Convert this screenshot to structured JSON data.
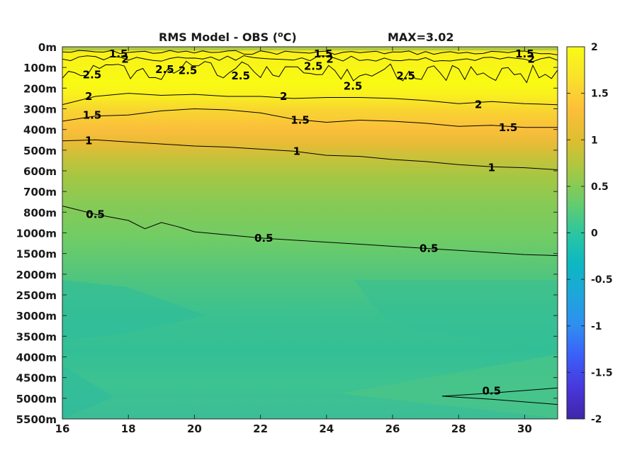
{
  "chart_data": {
    "type": "heatmap",
    "title": "RMS Model - OBS (",
    "title_unit": "o",
    "title_unit_tail": "C)",
    "max_label": "MAX=3.02",
    "x": {
      "ticks": [
        16,
        18,
        20,
        22,
        24,
        26,
        28,
        30
      ],
      "range": [
        16,
        31
      ]
    },
    "y": {
      "depth_labels": [
        "0m",
        "100m",
        "200m",
        "300m",
        "400m",
        "500m",
        "600m",
        "700m",
        "800m",
        "1000m",
        "1500m",
        "2000m",
        "2500m",
        "3000m",
        "3500m",
        "4000m",
        "4500m",
        "5000m",
        "5500m"
      ],
      "reversed": true
    },
    "colorbar": {
      "ticks": [
        "2",
        "1.5",
        "1",
        "0.5",
        "0",
        "-0.5",
        "-1",
        "-1.5",
        "-2"
      ],
      "range": [
        -2,
        2
      ],
      "colormap": "parula",
      "colors": [
        "#3e26a8",
        "#4836d9",
        "#3b5ff9",
        "#2f8ef0",
        "#1fa5dc",
        "#0db8c0",
        "#2cc6a0",
        "#66cc6c",
        "#a7c842",
        "#dfbe30",
        "#fcbe3a",
        "#f9e32b",
        "#f9fb15"
      ]
    },
    "value_index_to_depth": [
      0,
      100,
      200,
      300,
      400,
      500,
      600,
      700,
      800,
      1000,
      1500,
      2000,
      2500,
      3000,
      3500,
      4000,
      4500,
      5000,
      5500
    ],
    "rms_profile": [
      {
        "depth": "0m",
        "value": 1.3
      },
      {
        "depth": "100m",
        "value": 2.3
      },
      {
        "depth": "200m",
        "value": 2.1
      },
      {
        "depth": "300m",
        "value": 1.7
      },
      {
        "depth": "400m",
        "value": 1.3
      },
      {
        "depth": "500m",
        "value": 1.0
      },
      {
        "depth": "600m",
        "value": 0.85
      },
      {
        "depth": "700m",
        "value": 0.72
      },
      {
        "depth": "800m",
        "value": 0.6
      },
      {
        "depth": "1000m",
        "value": 0.5
      },
      {
        "depth": "1500m",
        "value": 0.42
      },
      {
        "depth": "2000m",
        "value": 0.36
      },
      {
        "depth": "2500m",
        "value": 0.32
      },
      {
        "depth": "3000m",
        "value": 0.3
      },
      {
        "depth": "3500m",
        "value": 0.32
      },
      {
        "depth": "4000m",
        "value": 0.35
      },
      {
        "depth": "4500m",
        "value": 0.38
      },
      {
        "depth": "5000m",
        "value": 0.4
      },
      {
        "depth": "5500m",
        "value": 0.36
      }
    ],
    "contour_levels": [
      {
        "level": 2.5,
        "label": "2.5"
      },
      {
        "level": 2,
        "label": "2"
      },
      {
        "level": 1.5,
        "label": "1.5"
      },
      {
        "level": 1,
        "label": "1"
      },
      {
        "level": 0.5,
        "label": "0.5"
      }
    ],
    "contour_labels": [
      {
        "text": "1.5",
        "x": 17.7,
        "depth": 0.35
      },
      {
        "text": "2",
        "x": 17.9,
        "depth": 0.6
      },
      {
        "text": "2.5",
        "x": 16.9,
        "depth": 1.35
      },
      {
        "text": "2.5",
        "x": 19.1,
        "depth": 1.1
      },
      {
        "text": "2.5",
        "x": 19.8,
        "depth": 1.15
      },
      {
        "text": "2.5",
        "x": 21.4,
        "depth": 1.4
      },
      {
        "text": "1.5",
        "x": 23.9,
        "depth": 0.35
      },
      {
        "text": "2",
        "x": 24.1,
        "depth": 0.6
      },
      {
        "text": "2.5",
        "x": 23.6,
        "depth": 0.95
      },
      {
        "text": "2.5",
        "x": 24.8,
        "depth": 1.9
      },
      {
        "text": "2.5",
        "x": 26.4,
        "depth": 1.4
      },
      {
        "text": "1.5",
        "x": 30.0,
        "depth": 0.35
      },
      {
        "text": "2",
        "x": 30.2,
        "depth": 0.6
      },
      {
        "text": "2",
        "x": 16.8,
        "depth": 2.4
      },
      {
        "text": "2",
        "x": 22.7,
        "depth": 2.4
      },
      {
        "text": "2",
        "x": 28.6,
        "depth": 2.8
      },
      {
        "text": "1.5",
        "x": 16.9,
        "depth": 3.3
      },
      {
        "text": "1.5",
        "x": 23.2,
        "depth": 3.55
      },
      {
        "text": "1.5",
        "x": 29.5,
        "depth": 3.9
      },
      {
        "text": "1",
        "x": 16.8,
        "depth": 4.55
      },
      {
        "text": "1",
        "x": 23.1,
        "depth": 5.05
      },
      {
        "text": "1",
        "x": 29.0,
        "depth": 5.85
      },
      {
        "text": "0.5",
        "x": 17.0,
        "depth": 8.1
      },
      {
        "text": "0.5",
        "x": 22.1,
        "depth": 9.25
      },
      {
        "text": "0.5",
        "x": 27.1,
        "depth": 9.75
      },
      {
        "text": "0.5",
        "x": 29.0,
        "depth": 16.65
      }
    ]
  }
}
